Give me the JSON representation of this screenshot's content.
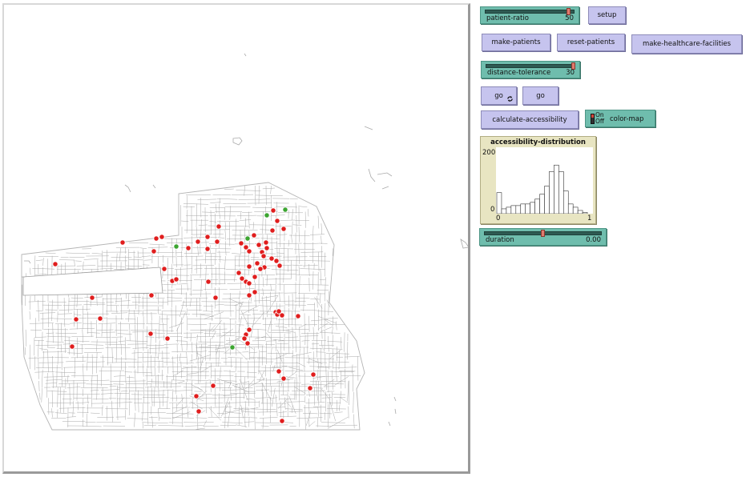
{
  "controls": {
    "patient_ratio": {
      "label": "patient-ratio",
      "value": "50",
      "fraction": 0.93
    },
    "setup": "setup",
    "make_patients": "make-patients",
    "reset_patients": "reset-patients",
    "make_healthcare_facilities": "make-healthcare-facilities",
    "distance_tolerance": {
      "label": "distance-tolerance",
      "value": "30",
      "fraction": 0.98
    },
    "go_forever": {
      "label": "go",
      "icon": "forever-loop-icon"
    },
    "go_once": "go",
    "calculate_accessibility": "calculate-accessibility",
    "color_map": {
      "label": "color-map",
      "on": "On",
      "off": "Off",
      "state": "on"
    },
    "duration": {
      "label": "duration",
      "value": "0.00",
      "fraction": 0.5
    }
  },
  "plot": {
    "title": "accessibility-distribution",
    "y_max_label": "200",
    "y_min_label": "0",
    "x_min_label": "0",
    "x_max_label": "1"
  },
  "chart_data": {
    "type": "bar",
    "title": "accessibility-distribution",
    "xlim": [
      0,
      1
    ],
    "ylim": [
      0,
      200
    ],
    "bin_count": 20,
    "values": [
      65,
      15,
      20,
      25,
      25,
      30,
      30,
      35,
      45,
      60,
      85,
      130,
      150,
      130,
      70,
      30,
      20,
      10,
      4,
      0
    ]
  },
  "colors": {
    "patient": "#e01e1e",
    "facility": "#3ca531",
    "road": "#a8a8a8",
    "button": "#c6c4ee",
    "slider": "#6fbdad",
    "plot_bg": "#e8e5c2"
  }
}
